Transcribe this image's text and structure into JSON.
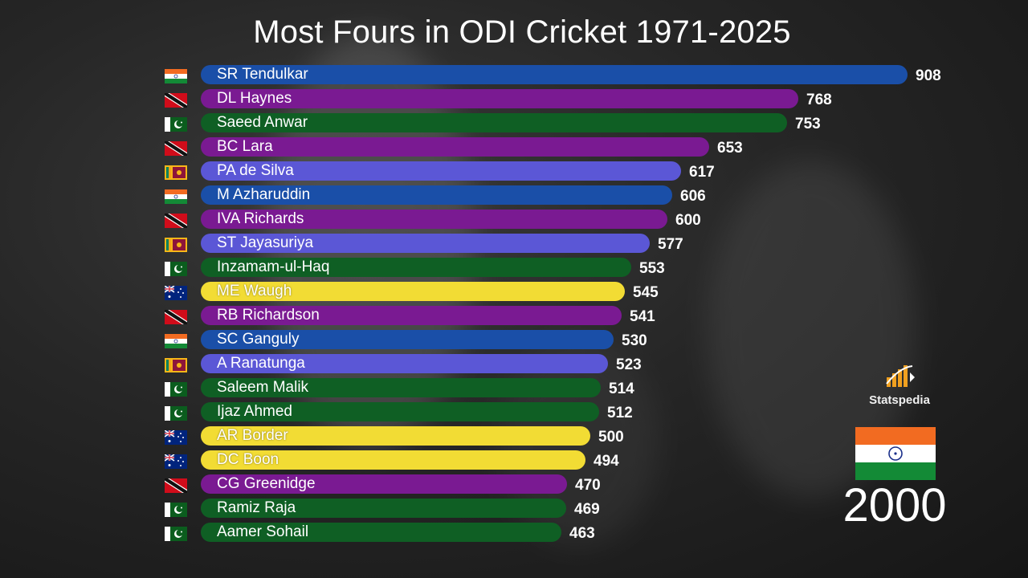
{
  "title": "Most Fours in ODI Cricket 1971-2025",
  "brand": "Statspedia",
  "year": "2000",
  "current_flag": "india-flag",
  "colors": {
    "india": "#1a4fa8",
    "west_indies": "#7a1a92",
    "pakistan": "#0f5f24",
    "sri_lanka": "#5b57d6",
    "australia": "#f2dc34",
    "text": "#ffffff"
  },
  "chart_data": {
    "type": "bar",
    "orientation": "horizontal",
    "title": "Most Fours in ODI Cricket 1971-2025",
    "categories": [
      "SR Tendulkar",
      "DL Haynes",
      "Saeed Anwar",
      "BC Lara",
      "PA de Silva",
      "M Azharuddin",
      "IVA Richards",
      "ST Jayasuriya",
      "Inzamam-ul-Haq",
      "ME Waugh",
      "RB Richardson",
      "SC Ganguly",
      "A Ranatunga",
      "Saleem Malik",
      "Ijaz Ahmed",
      "AR Border",
      "DC Boon",
      "CG Greenidge",
      "Ramiz Raja",
      "Aamer Sohail"
    ],
    "values": [
      908,
      768,
      753,
      653,
      617,
      606,
      600,
      577,
      553,
      545,
      541,
      530,
      523,
      514,
      512,
      500,
      494,
      470,
      469,
      463
    ],
    "countries": [
      "india",
      "west_indies",
      "pakistan",
      "west_indies",
      "sri_lanka",
      "india",
      "west_indies",
      "sri_lanka",
      "pakistan",
      "australia",
      "west_indies",
      "india",
      "sri_lanka",
      "pakistan",
      "pakistan",
      "australia",
      "australia",
      "west_indies",
      "pakistan",
      "pakistan"
    ],
    "xlim": [
      0,
      908
    ],
    "grid": false,
    "legend": "none"
  }
}
